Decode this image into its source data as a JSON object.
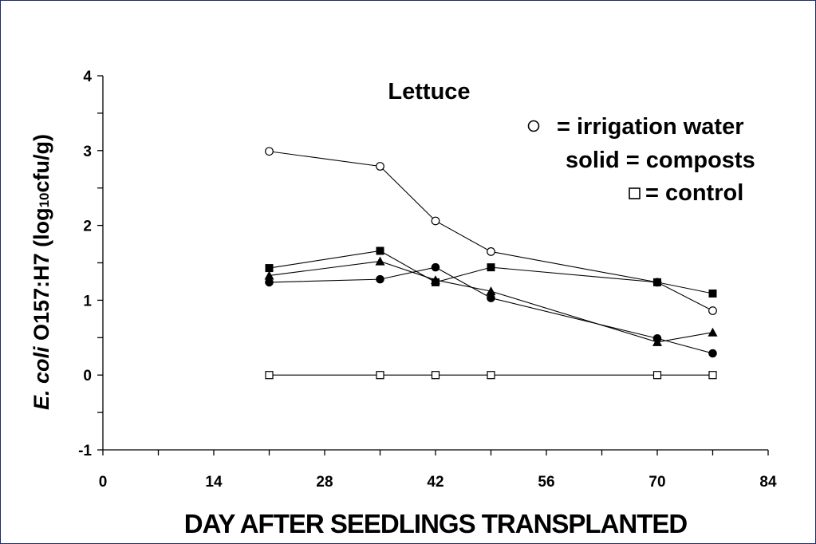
{
  "chart_data": {
    "type": "line",
    "title": "Lettuce",
    "xlabel": "DAY AFTER SEEDLINGS TRANSPLANTED",
    "ylabel": {
      "italic": "E. coli",
      "main": " O157:H7 (log",
      "sub": "10",
      "unit": "cfu/g)"
    },
    "xlim": [
      0,
      84
    ],
    "ylim": [
      -1,
      4
    ],
    "xticks": [
      0,
      14,
      28,
      42,
      56,
      70,
      84
    ],
    "yticks": [
      -1,
      0,
      1,
      2,
      3,
      4
    ],
    "grid": false,
    "legend_text": [
      "= irrigation water",
      "solid = composts",
      "= control"
    ],
    "series": [
      {
        "marker": "circle-open",
        "x": [
          21,
          35,
          42,
          49,
          70,
          77
        ],
        "y": [
          2.99,
          2.79,
          2.06,
          1.65,
          1.24,
          0.86
        ]
      },
      {
        "marker": "square-filled",
        "x": [
          21,
          35,
          42,
          49,
          70,
          77
        ],
        "y": [
          1.43,
          1.66,
          1.24,
          1.44,
          1.24,
          1.09
        ]
      },
      {
        "marker": "triangle-filled",
        "x": [
          21,
          35,
          42,
          49,
          70,
          77
        ],
        "y": [
          1.33,
          1.52,
          1.27,
          1.12,
          0.44,
          0.57
        ]
      },
      {
        "marker": "circle-filled",
        "x": [
          21,
          35,
          42,
          49,
          70,
          77
        ],
        "y": [
          1.24,
          1.28,
          1.44,
          1.03,
          0.49,
          0.29
        ]
      },
      {
        "marker": "square-open",
        "x": [
          21,
          35,
          42,
          49,
          70,
          77
        ],
        "y": [
          0,
          0,
          0,
          0,
          0,
          0
        ]
      }
    ]
  }
}
